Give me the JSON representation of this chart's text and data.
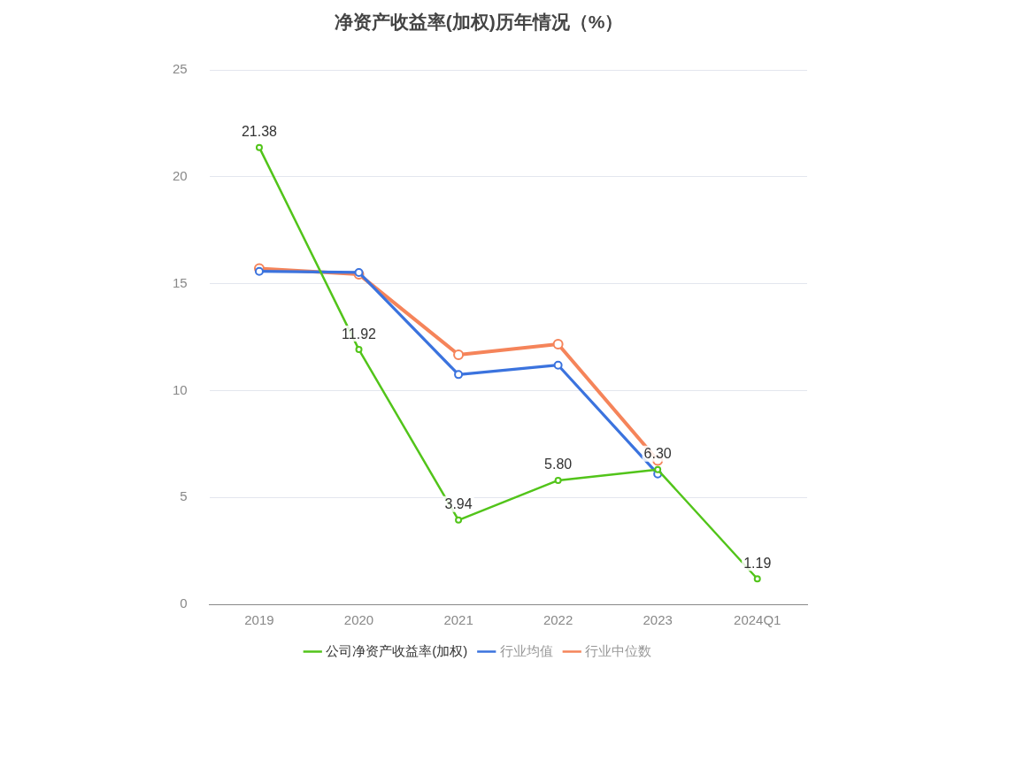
{
  "chart_data": {
    "type": "line",
    "title": "净资产收益率(加权)历年情况（%）",
    "categories": [
      "2019",
      "2020",
      "2021",
      "2022",
      "2023",
      "2024Q1"
    ],
    "series": [
      {
        "name": "公司净资产收益率(加权)",
        "color": "#52c41a",
        "values": [
          21.38,
          11.92,
          3.94,
          5.8,
          6.3,
          1.19
        ],
        "value_labels": [
          "21.38",
          "11.92",
          "3.94",
          "5.80",
          "6.30",
          "1.19"
        ]
      },
      {
        "name": "行业均值",
        "color": "#3b73de",
        "values": [
          15.58,
          15.53,
          10.75,
          11.19,
          6.1,
          null
        ]
      },
      {
        "name": "行业中位数",
        "color": "#f5845a",
        "values": [
          15.71,
          15.44,
          11.68,
          12.17,
          6.73,
          null
        ]
      }
    ],
    "ylim": [
      0,
      25
    ],
    "yticks": [
      0,
      5,
      10,
      15,
      20,
      25
    ],
    "grid": "y",
    "legend": "bottom",
    "marker": "circle",
    "line_style": "solid"
  }
}
